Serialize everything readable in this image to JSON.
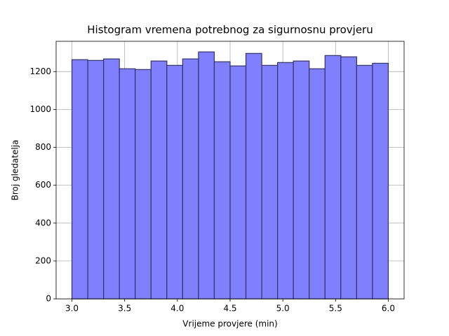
{
  "chart_data": {
    "type": "histogram",
    "title": "Histogram vremena potrebnog za sigurnosnu provjeru",
    "x_label": "Vrijeme provjere (min)",
    "y_label": "Broj gledatelja",
    "bins": [
      3.0,
      3.15,
      3.3,
      3.45,
      3.6,
      3.75,
      3.9,
      4.05,
      4.2,
      4.35,
      4.5,
      4.65,
      4.8,
      4.95,
      5.1,
      5.25,
      5.4,
      5.55,
      5.7,
      5.85,
      6.0
    ],
    "counts": [
      1263,
      1259,
      1267,
      1215,
      1211,
      1256,
      1233,
      1267,
      1304,
      1252,
      1230,
      1296,
      1233,
      1248,
      1256,
      1215,
      1285,
      1278,
      1233,
      1244
    ],
    "color": "#8080ff",
    "edgecolor": "#333366",
    "xlim": [
      2.85,
      6.15
    ],
    "ylim": [
      0,
      1360
    ],
    "xticks": [
      {
        "value": 3,
        "label": "3.0"
      },
      3.5,
      {
        "value": 4,
        "label": "4.0"
      },
      4.5,
      {
        "value": 5,
        "label": "5.0"
      },
      5.5,
      {
        "value": 6,
        "label": "6.0"
      }
    ],
    "yticks": [
      0,
      200,
      400,
      600,
      800,
      1000,
      1200
    ],
    "grid": true
  }
}
